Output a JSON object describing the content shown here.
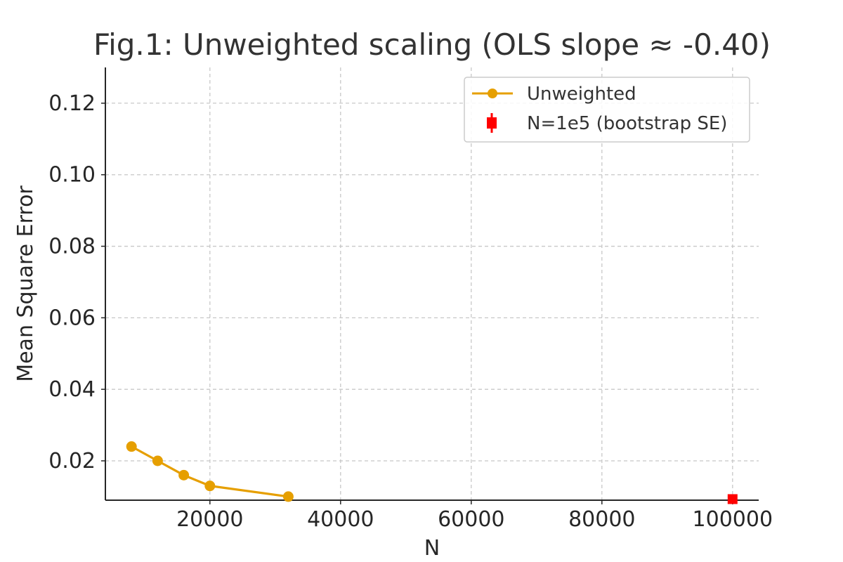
{
  "chart_data": {
    "type": "line",
    "title": "Fig.1: Unweighted scaling (OLS slope ≈ -0.40)",
    "xlabel": "N",
    "ylabel": "Mean Square Error",
    "xlim": [
      4000,
      104000
    ],
    "ylim": [
      0.009,
      0.13
    ],
    "x_ticks": [
      20000,
      40000,
      60000,
      80000,
      100000
    ],
    "y_ticks": [
      0.02,
      0.04,
      0.06,
      0.08,
      0.1,
      0.12
    ],
    "x_tick_labels": [
      "20000",
      "40000",
      "60000",
      "80000",
      "100000"
    ],
    "y_tick_labels": [
      "0.02",
      "0.04",
      "0.06",
      "0.08",
      "0.10",
      "0.12"
    ],
    "grid": true,
    "legend_position": "top-right",
    "series": [
      {
        "name": "Unweighted",
        "kind": "line-marker",
        "color": "#E69F00",
        "x": [
          8000,
          12000,
          16000,
          20000,
          32000
        ],
        "y": [
          0.024,
          0.02,
          0.016,
          0.013,
          0.01
        ]
      },
      {
        "name": "N=1e5 (bootstrap SE)",
        "kind": "errorbar-square",
        "color": "#FF0000",
        "x": [
          100000
        ],
        "y": [
          0.0093
        ],
        "yerr": [
          0.0004
        ]
      }
    ]
  }
}
